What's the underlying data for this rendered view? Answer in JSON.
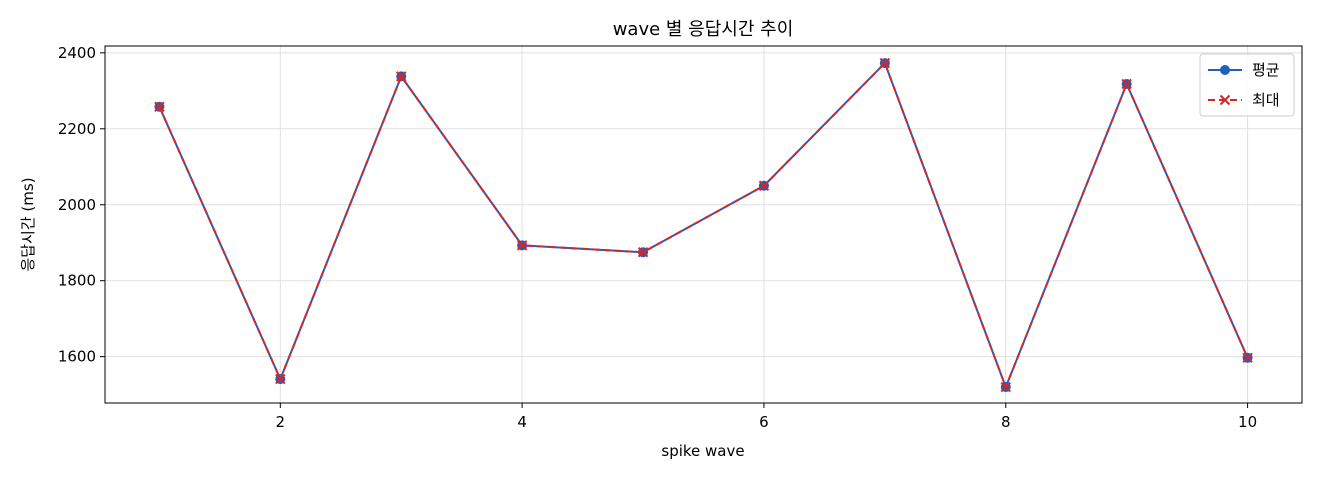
{
  "chart_data": {
    "type": "line",
    "title": "wave 별 응답시간 추이",
    "xlabel": "spike wave",
    "ylabel": "응답시간 (ms)",
    "x": [
      1,
      2,
      3,
      4,
      5,
      6,
      7,
      8,
      9,
      10
    ],
    "xlim": [
      0.55,
      10.45
    ],
    "ylim": [
      1478,
      2418
    ],
    "xticks": [
      2,
      4,
      6,
      8,
      10
    ],
    "yticks": [
      1600,
      1800,
      2000,
      2200,
      2400
    ],
    "grid": true,
    "legend_position": "top-right",
    "series": [
      {
        "name": "평균",
        "values": [
          2258,
          1541,
          2338,
          1893,
          1875,
          2050,
          2373,
          1520,
          2318,
          1597
        ],
        "color": "#1f5fbf",
        "line_style": "solid",
        "marker": "circle"
      },
      {
        "name": "최대",
        "values": [
          2258,
          1541,
          2338,
          1893,
          1875,
          2050,
          2373,
          1520,
          2318,
          1597
        ],
        "color": "#d62728",
        "line_style": "dashed",
        "marker": "x"
      }
    ]
  }
}
